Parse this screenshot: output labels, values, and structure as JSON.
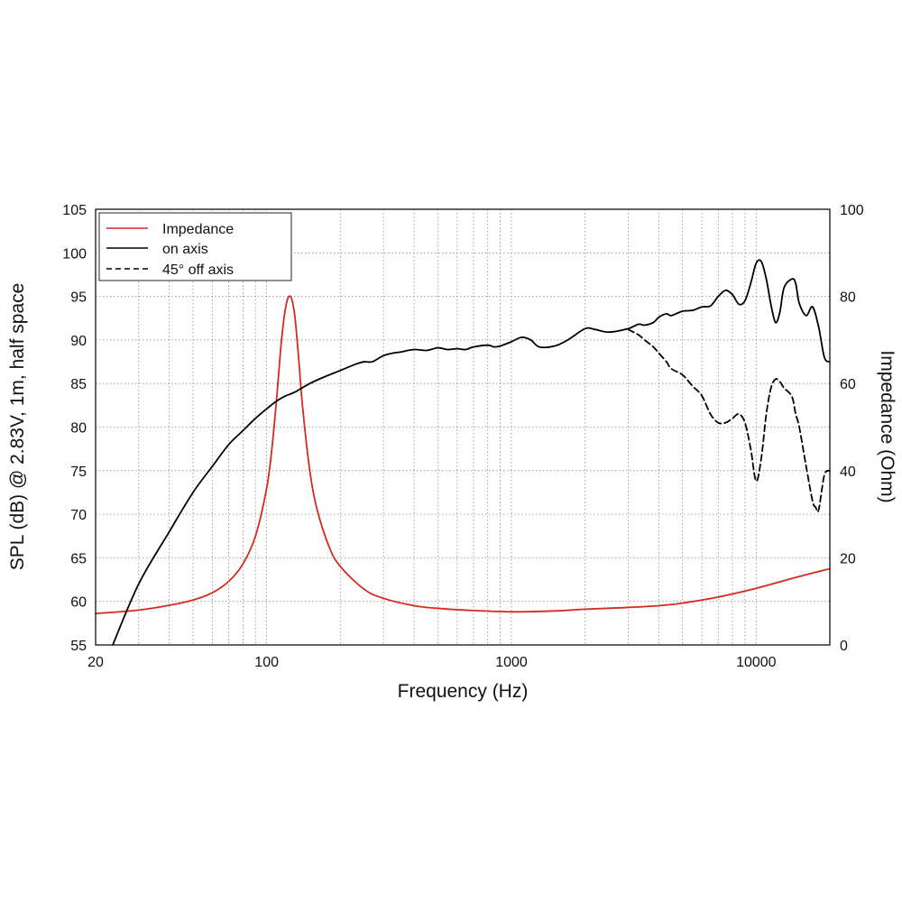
{
  "chart_data": {
    "type": "line",
    "xscale": "log",
    "xlim": [
      20,
      20000
    ],
    "xlabel": "Frequency (Hz)",
    "xticks": [
      20,
      100,
      1000,
      10000
    ],
    "xtick_labels": [
      "20",
      "100",
      "1000",
      "10000"
    ],
    "ylabel_left": "SPL (dB) @ 2.83V, 1m, half space",
    "ylim_left": [
      55,
      105
    ],
    "yticks_left": [
      "55",
      "60",
      "65",
      "70",
      "75",
      "80",
      "85",
      "90",
      "95",
      "100",
      "105"
    ],
    "ylabel_right": "Impedance (Ohm)",
    "ylim_right": [
      0,
      100
    ],
    "yticks_right": [
      "0",
      "20",
      "40",
      "60",
      "80",
      "100"
    ],
    "grid": true,
    "legend_position": "top-left",
    "colors": {
      "impedance": "#d42a20",
      "spl": "#000000",
      "frame": "#222222"
    },
    "series": [
      {
        "name": "Impedance",
        "axis": "right",
        "style": "solid",
        "color": "#d42a20",
        "x": [
          20,
          30,
          40,
          50,
          60,
          70,
          80,
          90,
          100,
          105,
          110,
          115,
          120,
          125,
          130,
          135,
          140,
          150,
          160,
          180,
          200,
          250,
          300,
          400,
          500,
          700,
          1000,
          1500,
          2000,
          3000,
          4000,
          5000,
          7000,
          10000,
          15000,
          20000
        ],
        "values": [
          7.2,
          8.0,
          9.1,
          10.3,
          12.0,
          14.6,
          18.6,
          25.0,
          36.0,
          45.0,
          57.0,
          70.0,
          78.0,
          80.0,
          76.0,
          66.0,
          55.0,
          40.0,
          31.5,
          22.5,
          18.0,
          12.8,
          10.7,
          9.0,
          8.4,
          7.9,
          7.6,
          7.8,
          8.2,
          8.6,
          9.0,
          9.6,
          11.0,
          13.0,
          15.7,
          17.5
        ]
      },
      {
        "name": "on axis",
        "axis": "left",
        "style": "solid",
        "color": "#000000",
        "x": [
          23.5,
          30,
          40,
          50,
          60,
          70,
          80,
          90,
          100,
          110,
          120,
          130,
          150,
          170,
          200,
          230,
          250,
          270,
          300,
          330,
          350,
          400,
          450,
          500,
          550,
          600,
          650,
          700,
          800,
          850,
          900,
          1000,
          1100,
          1200,
          1300,
          1500,
          1700,
          2000,
          2200,
          2500,
          3000,
          3300,
          3500,
          3800,
          4000,
          4300,
          4500,
          5000,
          5500,
          6000,
          6500,
          7000,
          7500,
          8000,
          8500,
          9000,
          9500,
          10000,
          10500,
          11000,
          11500,
          12000,
          12500,
          13000,
          14000,
          14500,
          15000,
          16000,
          17000,
          18000,
          19000,
          20000
        ],
        "values": [
          55,
          62,
          68,
          72.5,
          75.5,
          78,
          79.6,
          81,
          82.1,
          83,
          83.6,
          84,
          85,
          85.7,
          86.5,
          87.2,
          87.5,
          87.5,
          88.2,
          88.5,
          88.6,
          88.9,
          88.8,
          89.1,
          88.9,
          89,
          88.9,
          89.2,
          89.4,
          89.2,
          89.3,
          89.8,
          90.3,
          90,
          89.2,
          89.3,
          90,
          91.3,
          91.2,
          90.9,
          91.3,
          91.8,
          91.7,
          92,
          92.6,
          93,
          92.8,
          93.3,
          93.4,
          93.8,
          93.9,
          95,
          95.7,
          95.2,
          94.1,
          94.5,
          96.5,
          98.8,
          99,
          97,
          94,
          92,
          93.2,
          96,
          97,
          96.5,
          94.2,
          92.8,
          93.8,
          91.5,
          88,
          87.5
        ]
      },
      {
        "name": "45° off axis",
        "axis": "left",
        "style": "dashed",
        "color": "#000000",
        "x": [
          3000,
          3300,
          3500,
          3800,
          4000,
          4300,
          4500,
          5000,
          5500,
          6000,
          6500,
          7000,
          7500,
          8000,
          8500,
          9000,
          9500,
          10000,
          10500,
          11000,
          11500,
          12000,
          12500,
          13000,
          14000,
          14500,
          15000,
          16000,
          17000,
          17500,
          18000,
          19000,
          20000
        ],
        "values": [
          91.2,
          90.6,
          90,
          89.2,
          88.5,
          87.5,
          86.7,
          86,
          84.7,
          83.6,
          81.5,
          80.5,
          80.5,
          81,
          81.5,
          80.5,
          77.5,
          73.8,
          76.5,
          81.5,
          84.5,
          85.5,
          85.2,
          84.5,
          83.5,
          81.5,
          80,
          75.5,
          71.5,
          70.8,
          70.5,
          74.5,
          75
        ]
      }
    ]
  }
}
